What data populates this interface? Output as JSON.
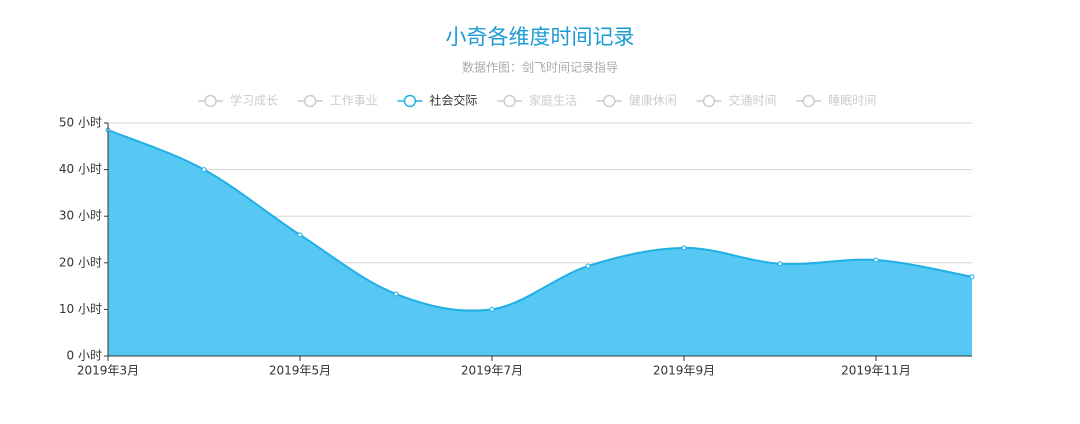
{
  "chart_data": {
    "type": "area",
    "title": "小奇各维度时间记录",
    "subtitle": "数据作图：剑飞时间记录指导",
    "legend": {
      "items": [
        "学习成长",
        "工作事业",
        "社会交际",
        "家庭生活",
        "健康休闲",
        "交通时间",
        "睡眠时间"
      ],
      "selected": "社会交际",
      "inactive_color": "#cccccc"
    },
    "categories": [
      "2019年3月",
      null,
      "2019年5月",
      null,
      "2019年7月",
      null,
      "2019年9月",
      null,
      "2019年11月",
      null
    ],
    "series": [
      {
        "name": "社会交际",
        "color": "#1fb0e6",
        "fill": "#56c8f3",
        "values": [
          48.5,
          40,
          26,
          13.3,
          10,
          19.3,
          23.2,
          19.8,
          20.6,
          17
        ]
      }
    ],
    "ylim": [
      0,
      50
    ],
    "yticks": [
      {
        "value": 0,
        "label": "0 小时"
      },
      {
        "value": 10,
        "label": "10 小时"
      },
      {
        "value": 20,
        "label": "20 小时"
      },
      {
        "value": 30,
        "label": "30 小时"
      },
      {
        "value": 40,
        "label": "40 小时"
      },
      {
        "value": 50,
        "label": "50 小时"
      }
    ],
    "grid": true,
    "smooth": true
  }
}
